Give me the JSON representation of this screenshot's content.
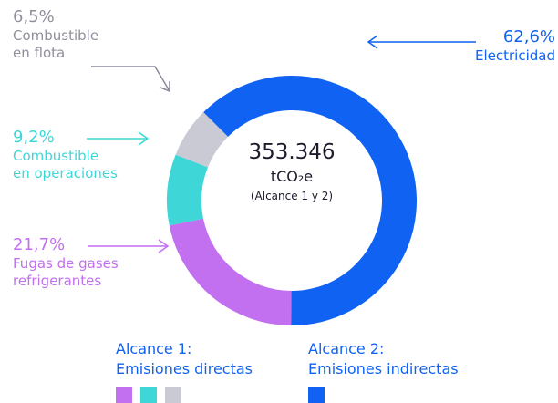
{
  "chart_data": {
    "type": "donut",
    "categories": [
      "Electricidad",
      "Fugas de gases\nrefrigerantes",
      "Combustible\nen operaciones",
      "Combustible\nen flota"
    ],
    "values": [
      62.6,
      21.7,
      9.2,
      6.5
    ],
    "value_labels": [
      "62,6%",
      "21,7%",
      "9,2%",
      "6,5%"
    ],
    "colors": [
      "#0f62f2",
      "#c26ff0",
      "#3fd6d8",
      "#c9cad3"
    ],
    "center": {
      "total": "353.346",
      "unit": "tCO₂e",
      "scope": "(Alcance 1 y 2)"
    },
    "legend": [
      {
        "title": "Alcance 1:",
        "subtitle": "Emisiones directas"
      },
      {
        "title": "Alcance 2:",
        "subtitle": "Emisiones indirectas"
      }
    ]
  }
}
